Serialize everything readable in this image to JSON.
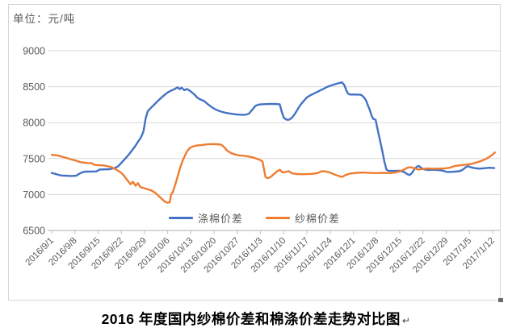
{
  "unit_label": "单位：元/吨",
  "title": "2016 年度国内纱棉价差和棉涤价差走势对比图",
  "paragraph_mark": "↵",
  "colors": {
    "series_blue": "#4472C4",
    "series_orange": "#ED7D31",
    "gridline": "#D9D9D9",
    "axis_line": "#BFBFBF",
    "tick_text": "#595959",
    "title_text": "#000000",
    "frame_border": "#D5D5D5"
  },
  "legend": {
    "items": [
      {
        "label": "涤棉价差",
        "color": "#4472C4"
      },
      {
        "label": "纱棉价差",
        "color": "#ED7D31"
      }
    ]
  },
  "chart_data": {
    "type": "line",
    "title": "2016 年度国内纱棉价差和棉涤价差走势对比图",
    "ylabel": "元/吨",
    "ylim": [
      6500,
      9000
    ],
    "yticks": [
      6500,
      7000,
      7500,
      8000,
      8500,
      9000
    ],
    "grid": "horizontal",
    "legend_position": "inside-bottom-center",
    "x_unit": "days from 2016/9/1, one tick per 7 days",
    "xtick_labels": [
      "2016/9/1",
      "2016/9/8",
      "2016/9/15",
      "2016/9/22",
      "2016/9/29",
      "2016/10/6",
      "2016/10/13",
      "2016/10/20",
      "2016/10/27",
      "2016/11/3",
      "2016/11/10",
      "2016/11/17",
      "2016/11/24",
      "2016/12/1",
      "2016/12/8",
      "2016/12/15",
      "2016/12/22",
      "2016/12/29",
      "2017/1/5",
      "2017/1/12"
    ],
    "series": [
      {
        "name": "涤棉价差",
        "color": "#4472C4",
        "points": [
          [
            0,
            7300
          ],
          [
            1,
            7288
          ],
          [
            2,
            7275
          ],
          [
            3,
            7265
          ],
          [
            4,
            7262
          ],
          [
            6,
            7258
          ],
          [
            7.5,
            7262
          ],
          [
            8,
            7280
          ],
          [
            9,
            7305
          ],
          [
            10,
            7318
          ],
          [
            12,
            7320
          ],
          [
            13.5,
            7322
          ],
          [
            14.5,
            7348
          ],
          [
            16,
            7350
          ],
          [
            17.5,
            7352
          ],
          [
            19,
            7368
          ],
          [
            20,
            7390
          ],
          [
            21,
            7440
          ],
          [
            22,
            7490
          ],
          [
            23,
            7540
          ],
          [
            24,
            7600
          ],
          [
            25,
            7660
          ],
          [
            26,
            7730
          ],
          [
            27,
            7800
          ],
          [
            27.7,
            7880
          ],
          [
            28.3,
            8050
          ],
          [
            29,
            8160
          ],
          [
            30,
            8210
          ],
          [
            31,
            8255
          ],
          [
            32,
            8300
          ],
          [
            33,
            8345
          ],
          [
            34,
            8385
          ],
          [
            35,
            8420
          ],
          [
            36,
            8445
          ],
          [
            37,
            8465
          ],
          [
            38,
            8492
          ],
          [
            38.6,
            8465
          ],
          [
            39.2,
            8488
          ],
          [
            40,
            8452
          ],
          [
            40.8,
            8468
          ],
          [
            41.5,
            8448
          ],
          [
            42,
            8432
          ],
          [
            43,
            8395
          ],
          [
            44,
            8345
          ],
          [
            45,
            8320
          ],
          [
            46,
            8300
          ],
          [
            47,
            8260
          ],
          [
            48,
            8225
          ],
          [
            49,
            8195
          ],
          [
            50,
            8172
          ],
          [
            51,
            8155
          ],
          [
            52,
            8142
          ],
          [
            53,
            8132
          ],
          [
            54,
            8124
          ],
          [
            55.5,
            8116
          ],
          [
            57,
            8110
          ],
          [
            58.5,
            8110
          ],
          [
            59.5,
            8125
          ],
          [
            60.5,
            8180
          ],
          [
            61.5,
            8235
          ],
          [
            62.5,
            8252
          ],
          [
            64,
            8257
          ],
          [
            66,
            8260
          ],
          [
            67.5,
            8260
          ],
          [
            68.8,
            8256
          ],
          [
            69.4,
            8150
          ],
          [
            70,
            8068
          ],
          [
            70.8,
            8042
          ],
          [
            71.6,
            8040
          ],
          [
            72.5,
            8070
          ],
          [
            73.3,
            8118
          ],
          [
            74,
            8170
          ],
          [
            75,
            8245
          ],
          [
            76,
            8300
          ],
          [
            77,
            8352
          ],
          [
            78,
            8380
          ],
          [
            79,
            8402
          ],
          [
            80,
            8425
          ],
          [
            81,
            8448
          ],
          [
            82,
            8470
          ],
          [
            83,
            8495
          ],
          [
            84,
            8512
          ],
          [
            85,
            8528
          ],
          [
            86,
            8542
          ],
          [
            87,
            8554
          ],
          [
            87.6,
            8560
          ],
          [
            88.3,
            8520
          ],
          [
            88.8,
            8460
          ],
          [
            89.3,
            8408
          ],
          [
            90,
            8390
          ],
          [
            91,
            8392
          ],
          [
            92,
            8390
          ],
          [
            93,
            8390
          ],
          [
            93.6,
            8378
          ],
          [
            94.2,
            8352
          ],
          [
            94.8,
            8310
          ],
          [
            95.4,
            8240
          ],
          [
            96,
            8170
          ],
          [
            96.5,
            8098
          ],
          [
            97,
            8052
          ],
          [
            97.7,
            8040
          ],
          [
            98.4,
            7890
          ],
          [
            99.1,
            7740
          ],
          [
            99.8,
            7590
          ],
          [
            100.4,
            7450
          ],
          [
            101,
            7345
          ],
          [
            101.6,
            7330
          ],
          [
            103,
            7328
          ],
          [
            105,
            7330
          ],
          [
            106.4,
            7310
          ],
          [
            107.3,
            7282
          ],
          [
            108,
            7270
          ],
          [
            108.7,
            7300
          ],
          [
            109.5,
            7360
          ],
          [
            110.3,
            7390
          ],
          [
            110.8,
            7396
          ],
          [
            111.5,
            7370
          ],
          [
            112.3,
            7350
          ],
          [
            113.5,
            7342
          ],
          [
            115,
            7344
          ],
          [
            116.5,
            7340
          ],
          [
            118,
            7332
          ],
          [
            119,
            7316
          ],
          [
            120,
            7314
          ],
          [
            121.5,
            7318
          ],
          [
            123,
            7324
          ],
          [
            124,
            7345
          ],
          [
            125,
            7382
          ],
          [
            125.7,
            7394
          ],
          [
            126.5,
            7378
          ],
          [
            127.5,
            7368
          ],
          [
            129,
            7360
          ],
          [
            130.5,
            7366
          ],
          [
            132,
            7372
          ],
          [
            133.5,
            7368
          ]
        ]
      },
      {
        "name": "纱棉价差",
        "color": "#ED7D31",
        "points": [
          [
            0,
            7552
          ],
          [
            1,
            7548
          ],
          [
            2,
            7540
          ],
          [
            3,
            7528
          ],
          [
            4,
            7515
          ],
          [
            5,
            7502
          ],
          [
            6,
            7486
          ],
          [
            7,
            7476
          ],
          [
            8,
            7460
          ],
          [
            9,
            7448
          ],
          [
            10,
            7442
          ],
          [
            11,
            7438
          ],
          [
            12,
            7436
          ],
          [
            12.8,
            7415
          ],
          [
            14,
            7408
          ],
          [
            15.5,
            7406
          ],
          [
            17,
            7392
          ],
          [
            18,
            7380
          ],
          [
            19,
            7358
          ],
          [
            20,
            7332
          ],
          [
            21,
            7302
          ],
          [
            22,
            7250
          ],
          [
            23,
            7188
          ],
          [
            23.8,
            7142
          ],
          [
            24.5,
            7178
          ],
          [
            25.3,
            7122
          ],
          [
            26,
            7158
          ],
          [
            26.8,
            7102
          ],
          [
            28,
            7088
          ],
          [
            29,
            7072
          ],
          [
            30,
            7058
          ],
          [
            31,
            7030
          ],
          [
            32,
            6992
          ],
          [
            33,
            6948
          ],
          [
            34,
            6906
          ],
          [
            34.8,
            6886
          ],
          [
            35.6,
            6890
          ],
          [
            36,
            6998
          ],
          [
            36.6,
            7040
          ],
          [
            37.3,
            7140
          ],
          [
            38,
            7252
          ],
          [
            38.8,
            7380
          ],
          [
            39.5,
            7470
          ],
          [
            40.3,
            7552
          ],
          [
            41,
            7612
          ],
          [
            41.8,
            7652
          ],
          [
            42.8,
            7672
          ],
          [
            44,
            7684
          ],
          [
            45.5,
            7690
          ],
          [
            47,
            7698
          ],
          [
            48.5,
            7702
          ],
          [
            50,
            7700
          ],
          [
            51.2,
            7692
          ],
          [
            52,
            7660
          ],
          [
            52.8,
            7616
          ],
          [
            54,
            7580
          ],
          [
            55.2,
            7558
          ],
          [
            56.5,
            7545
          ],
          [
            58,
            7538
          ],
          [
            59.5,
            7528
          ],
          [
            61,
            7512
          ],
          [
            62,
            7495
          ],
          [
            62.8,
            7482
          ],
          [
            63.6,
            7458
          ],
          [
            64.1,
            7340
          ],
          [
            64.5,
            7242
          ],
          [
            65.2,
            7226
          ],
          [
            66,
            7242
          ],
          [
            67,
            7282
          ],
          [
            68,
            7322
          ],
          [
            68.8,
            7345
          ],
          [
            69.6,
            7308
          ],
          [
            70.5,
            7312
          ],
          [
            71.5,
            7325
          ],
          [
            72.5,
            7295
          ],
          [
            74,
            7285
          ],
          [
            76,
            7282
          ],
          [
            78,
            7286
          ],
          [
            80,
            7295
          ],
          [
            81.5,
            7325
          ],
          [
            82.5,
            7322
          ],
          [
            84,
            7305
          ],
          [
            85.5,
            7275
          ],
          [
            87,
            7252
          ],
          [
            87.7,
            7246
          ],
          [
            88.5,
            7268
          ],
          [
            90,
            7292
          ],
          [
            92,
            7302
          ],
          [
            94,
            7306
          ],
          [
            96,
            7300
          ],
          [
            98,
            7298
          ],
          [
            100,
            7302
          ],
          [
            102,
            7298
          ],
          [
            103.5,
            7305
          ],
          [
            105,
            7322
          ],
          [
            106.3,
            7348
          ],
          [
            107.3,
            7372
          ],
          [
            108,
            7380
          ],
          [
            109,
            7372
          ],
          [
            110,
            7355
          ],
          [
            110.8,
            7348
          ],
          [
            112,
            7356
          ],
          [
            113.5,
            7362
          ],
          [
            115,
            7358
          ],
          [
            117,
            7360
          ],
          [
            118.5,
            7362
          ],
          [
            120,
            7372
          ],
          [
            121.5,
            7396
          ],
          [
            123,
            7405
          ],
          [
            125,
            7416
          ],
          [
            126.5,
            7425
          ],
          [
            128,
            7444
          ],
          [
            129.5,
            7465
          ],
          [
            131,
            7495
          ],
          [
            132,
            7522
          ],
          [
            133,
            7556
          ],
          [
            133.7,
            7585
          ]
        ]
      }
    ]
  }
}
